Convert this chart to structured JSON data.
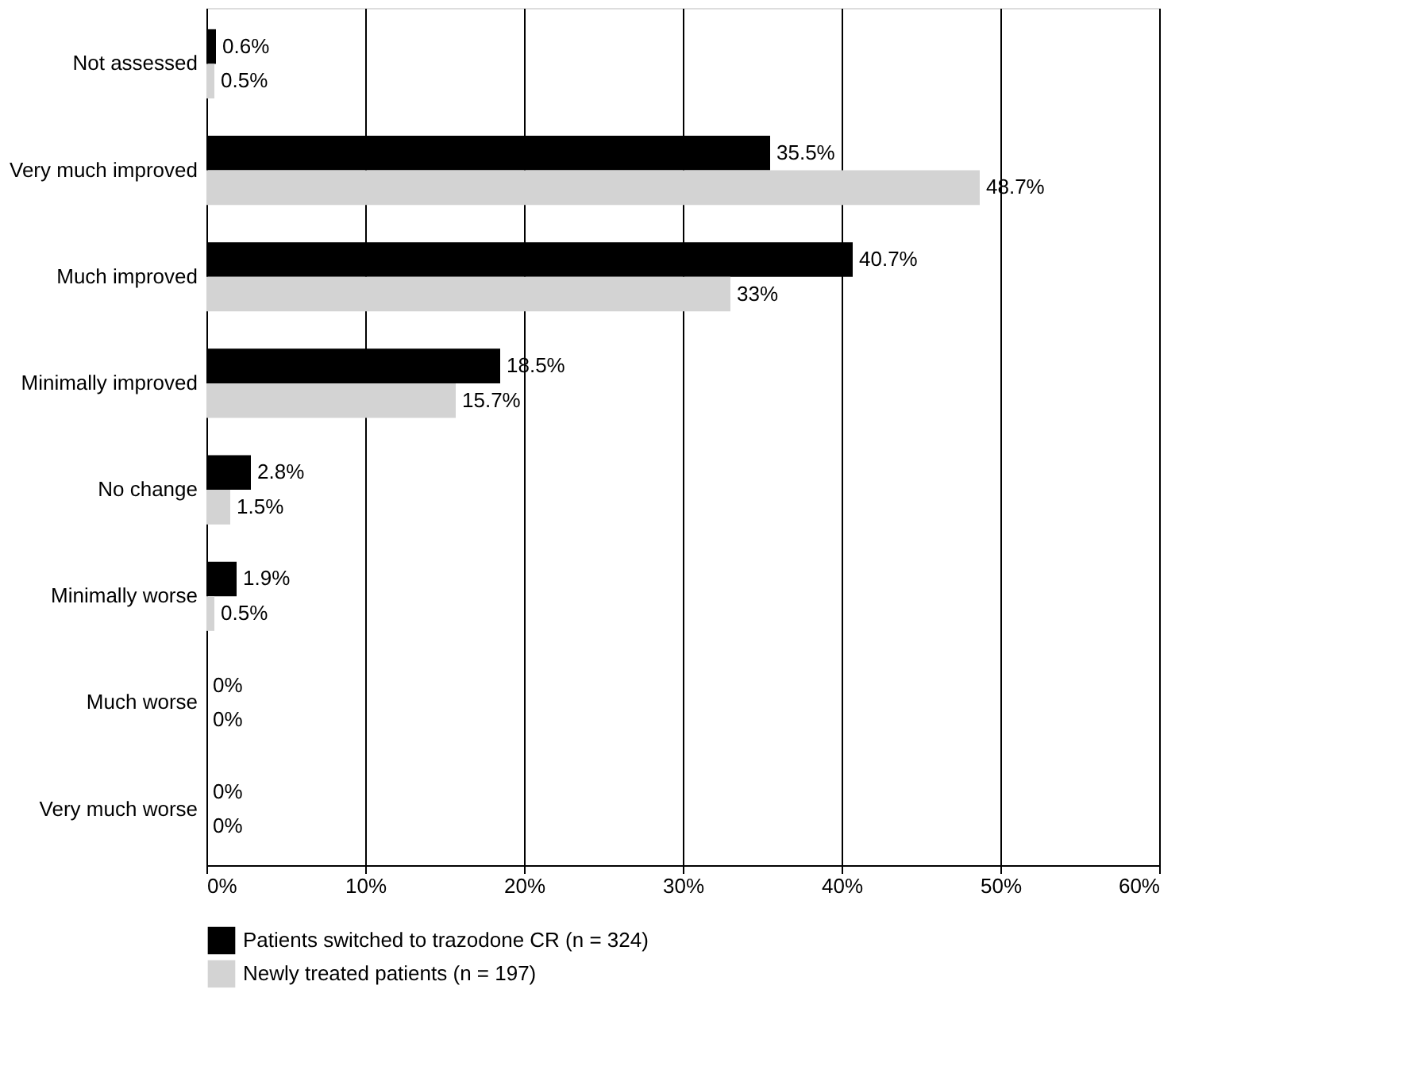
{
  "chart_data": {
    "type": "bar",
    "orientation": "horizontal",
    "categories": [
      "Not assessed",
      "Very much improved",
      "Much improved",
      "Minimally improved",
      "No change",
      "Minimally worse",
      "Much worse",
      "Very much worse"
    ],
    "series": [
      {
        "name": "Patients switched to trazodone CR (n = 324)",
        "color": "#000000",
        "values": [
          0.6,
          35.5,
          40.7,
          18.5,
          2.8,
          1.9,
          0,
          0
        ],
        "value_labels": [
          "0.6%",
          "35.5%",
          "40.7%",
          "18.5%",
          "2.8%",
          "1.9%",
          "0%",
          "0%"
        ]
      },
      {
        "name": "Newly treated patients (n = 197)",
        "color": "#d3d3d3",
        "values": [
          0.5,
          48.7,
          33,
          15.7,
          1.5,
          0.5,
          0,
          0
        ],
        "value_labels": [
          "0.5%",
          "48.7%",
          "33%",
          "15.7%",
          "1.5%",
          "0.5%",
          "0%",
          "0%"
        ]
      }
    ],
    "xlim": [
      0,
      60
    ],
    "xticks": [
      {
        "value": 0,
        "label": "0%"
      },
      {
        "value": 10,
        "label": "10%"
      },
      {
        "value": 20,
        "label": "20%"
      },
      {
        "value": 30,
        "label": "30%"
      },
      {
        "value": 40,
        "label": "40%"
      },
      {
        "value": 50,
        "label": "50%"
      },
      {
        "value": 60,
        "label": "60%"
      }
    ],
    "grid": "x",
    "legend": "bottom"
  }
}
